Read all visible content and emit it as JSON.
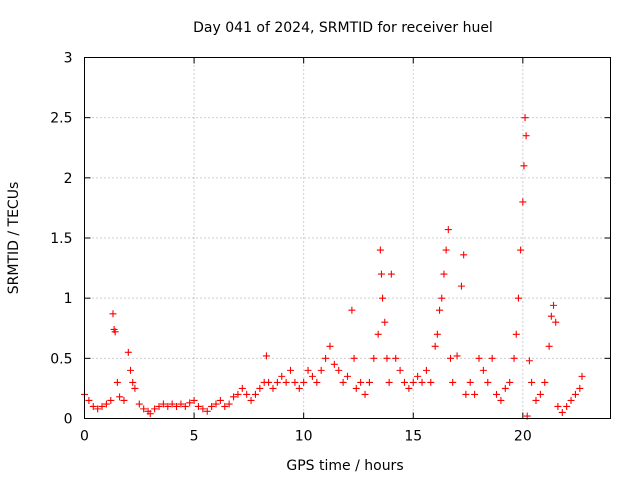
{
  "chart_data": {
    "type": "scatter",
    "title": "Day 041 of 2024, SRMTID for receiver huel",
    "xlabel": "GPS time / hours",
    "ylabel": "SRMTID / TECUs",
    "xlim": [
      0,
      24
    ],
    "ylim": [
      0,
      3
    ],
    "xticks": [
      0,
      5,
      10,
      15,
      20
    ],
    "xtick_labels": [
      "0",
      "5",
      "10",
      "15",
      "20"
    ],
    "yticks": [
      0,
      0.5,
      1,
      1.5,
      2,
      2.5,
      3
    ],
    "ytick_labels": [
      "0",
      "0.5",
      "1",
      "1.5",
      "2",
      "2.5",
      "3"
    ],
    "grid": true,
    "marker": "+",
    "series": [
      {
        "name": "SRMTID",
        "color": "#ff0000",
        "x": [
          0.0,
          0.2,
          0.4,
          0.6,
          0.8,
          1.0,
          1.2,
          1.3,
          1.35,
          1.4,
          1.5,
          1.6,
          1.8,
          2.0,
          2.1,
          2.2,
          2.3,
          2.5,
          2.7,
          2.9,
          3.0,
          3.2,
          3.4,
          3.6,
          3.8,
          4.0,
          4.2,
          4.4,
          4.6,
          4.8,
          5.0,
          5.2,
          5.4,
          5.6,
          5.8,
          6.0,
          6.2,
          6.4,
          6.6,
          6.8,
          7.0,
          7.2,
          7.4,
          7.6,
          7.8,
          8.0,
          8.2,
          8.3,
          8.4,
          8.6,
          8.8,
          9.0,
          9.2,
          9.4,
          9.6,
          9.8,
          10.0,
          10.2,
          10.4,
          10.6,
          10.8,
          11.0,
          11.2,
          11.4,
          11.6,
          11.8,
          12.0,
          12.2,
          12.3,
          12.4,
          12.6,
          12.8,
          13.0,
          13.2,
          13.4,
          13.5,
          13.55,
          13.6,
          13.7,
          13.8,
          13.9,
          14.0,
          14.2,
          14.4,
          14.6,
          14.8,
          15.0,
          15.2,
          15.4,
          15.6,
          15.8,
          16.0,
          16.1,
          16.2,
          16.3,
          16.4,
          16.5,
          16.6,
          16.7,
          16.8,
          17.0,
          17.2,
          17.3,
          17.4,
          17.6,
          17.8,
          18.0,
          18.2,
          18.4,
          18.6,
          18.8,
          19.0,
          19.2,
          19.4,
          19.6,
          19.7,
          19.8,
          19.9,
          20.0,
          20.05,
          20.1,
          20.15,
          20.2,
          20.3,
          20.4,
          20.6,
          20.8,
          21.0,
          21.2,
          21.3,
          21.4,
          21.5,
          21.6,
          21.8,
          22.0,
          22.2,
          22.4,
          22.6,
          22.7
        ],
        "y": [
          0.2,
          0.15,
          0.1,
          0.08,
          0.1,
          0.12,
          0.15,
          0.87,
          0.74,
          0.72,
          0.3,
          0.18,
          0.15,
          0.55,
          0.4,
          0.3,
          0.25,
          0.12,
          0.08,
          0.06,
          0.04,
          0.08,
          0.1,
          0.12,
          0.1,
          0.12,
          0.1,
          0.12,
          0.1,
          0.13,
          0.15,
          0.1,
          0.08,
          0.06,
          0.1,
          0.12,
          0.15,
          0.1,
          0.12,
          0.18,
          0.2,
          0.25,
          0.2,
          0.15,
          0.2,
          0.25,
          0.3,
          0.52,
          0.3,
          0.25,
          0.3,
          0.35,
          0.3,
          0.4,
          0.3,
          0.25,
          0.3,
          0.4,
          0.35,
          0.3,
          0.4,
          0.5,
          0.6,
          0.45,
          0.4,
          0.3,
          0.35,
          0.9,
          0.5,
          0.25,
          0.3,
          0.2,
          0.3,
          0.5,
          0.7,
          1.4,
          1.2,
          1.0,
          0.8,
          0.5,
          0.3,
          1.2,
          0.5,
          0.4,
          0.3,
          0.25,
          0.3,
          0.35,
          0.3,
          0.4,
          0.3,
          0.6,
          0.7,
          0.9,
          1.0,
          1.2,
          1.4,
          1.57,
          0.5,
          0.3,
          0.52,
          1.1,
          1.36,
          0.2,
          0.3,
          0.2,
          0.5,
          0.4,
          0.3,
          0.5,
          0.2,
          0.15,
          0.25,
          0.3,
          0.5,
          0.7,
          1.0,
          1.4,
          1.8,
          2.1,
          2.5,
          2.35,
          0.02,
          0.48,
          0.3,
          0.15,
          0.2,
          0.3,
          0.6,
          0.85,
          0.94,
          0.8,
          0.1,
          0.05,
          0.1,
          0.15,
          0.2,
          0.25,
          0.35
        ]
      }
    ]
  }
}
